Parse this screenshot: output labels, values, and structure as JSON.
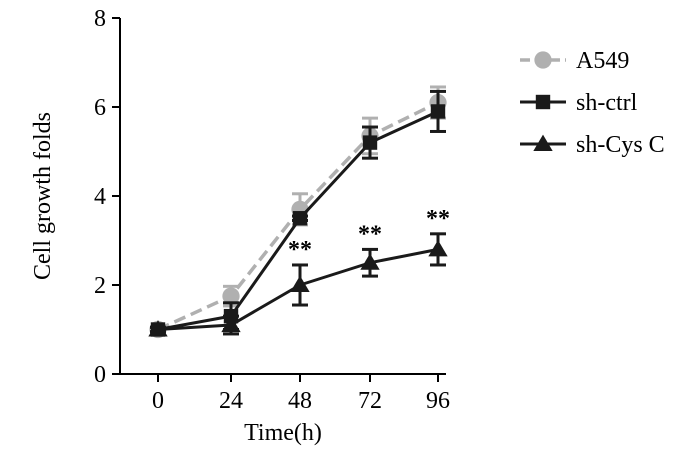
{
  "chart_data": {
    "type": "line",
    "xlabel": "Time(h)",
    "ylabel": "Cell growth folds",
    "x": [
      0,
      24,
      48,
      72,
      96
    ],
    "x_ticks": [
      "0",
      "24",
      "48",
      "72",
      "96"
    ],
    "y_ticks": [
      "0",
      "2",
      "4",
      "6",
      "8"
    ],
    "ylim": [
      0,
      8
    ],
    "grid": false,
    "legend_position": "right",
    "series": [
      {
        "name": "A549",
        "marker": "circle",
        "line_style": "dashed",
        "color": "#b0b0b0",
        "values": [
          1.0,
          1.75,
          3.7,
          5.35,
          6.1
        ],
        "errors": [
          0.05,
          0.22,
          0.35,
          0.4,
          0.35
        ]
      },
      {
        "name": "sh-ctrl",
        "marker": "square",
        "line_style": "solid",
        "color": "#1a1a1a",
        "values": [
          1.0,
          1.3,
          3.5,
          5.2,
          5.9
        ],
        "errors": [
          0.05,
          0.3,
          0.05,
          0.35,
          0.45
        ]
      },
      {
        "name": "sh-Cys C",
        "marker": "triangle",
        "line_style": "solid",
        "color": "#1a1a1a",
        "values": [
          1.0,
          1.1,
          2.0,
          2.5,
          2.8
        ],
        "errors": [
          0.05,
          0.2,
          0.45,
          0.3,
          0.35
        ]
      }
    ],
    "annotations": [
      {
        "x": 48,
        "y": 2.45,
        "text": "**"
      },
      {
        "x": 72,
        "y": 2.8,
        "text": "**"
      },
      {
        "x": 96,
        "y": 3.15,
        "text": "**"
      }
    ]
  }
}
